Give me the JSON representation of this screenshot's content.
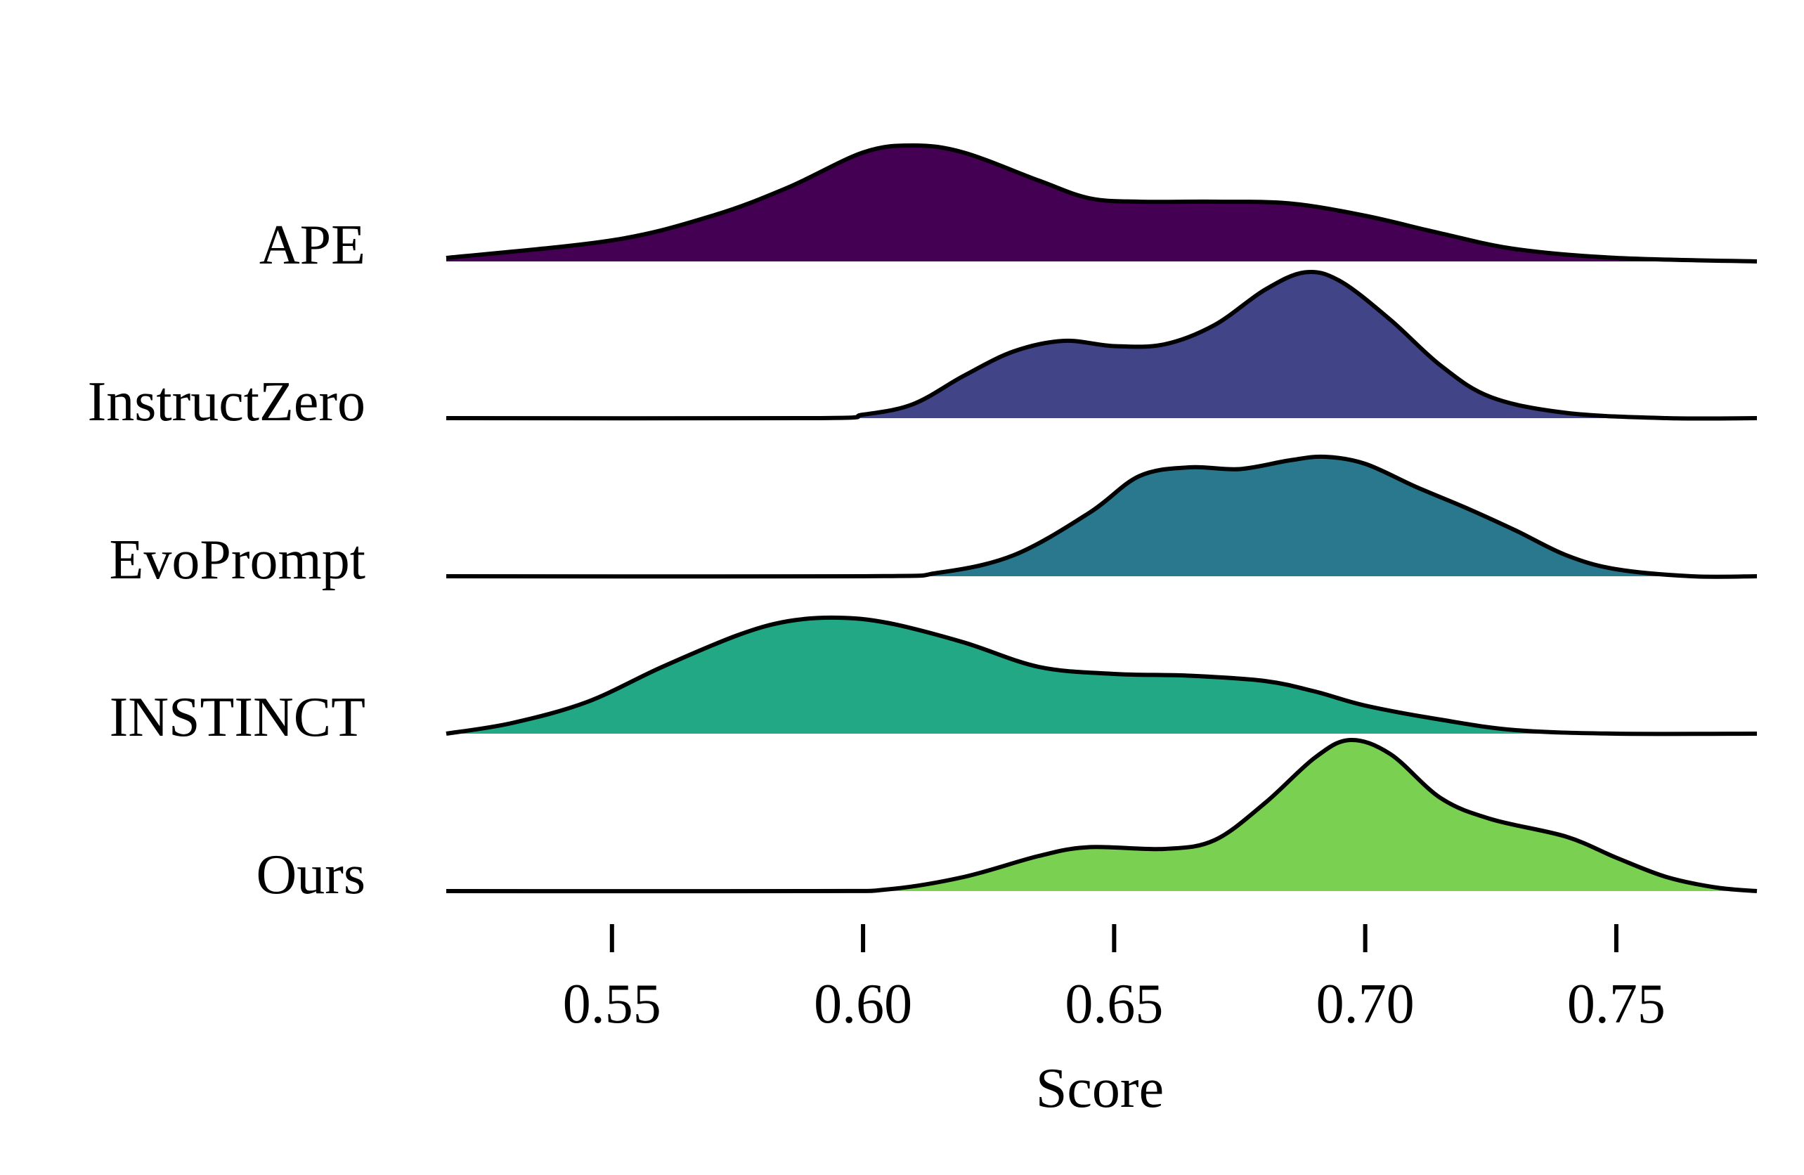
{
  "chart_data": {
    "type": "ridgeline",
    "title": "",
    "xlabel": "Score",
    "ylabel": "",
    "xlim": [
      0.517,
      0.778
    ],
    "xticks": [
      0.55,
      0.6,
      0.65,
      0.7,
      0.75
    ],
    "xtick_labels": [
      "0.55",
      "0.60",
      "0.65",
      "0.70",
      "0.75"
    ],
    "grid": false,
    "legend": "none",
    "series": [
      {
        "name": "APE",
        "color": "#440154",
        "points": [
          [
            0.517,
            0.02
          ],
          [
            0.55,
            0.12
          ],
          [
            0.57,
            0.26
          ],
          [
            0.585,
            0.42
          ],
          [
            0.6,
            0.62
          ],
          [
            0.61,
            0.66
          ],
          [
            0.62,
            0.62
          ],
          [
            0.635,
            0.46
          ],
          [
            0.645,
            0.36
          ],
          [
            0.655,
            0.34
          ],
          [
            0.67,
            0.34
          ],
          [
            0.685,
            0.33
          ],
          [
            0.7,
            0.26
          ],
          [
            0.715,
            0.16
          ],
          [
            0.73,
            0.07
          ],
          [
            0.75,
            0.02
          ],
          [
            0.778,
            0.0
          ]
        ]
      },
      {
        "name": "InstructZero",
        "color": "#414487",
        "points": [
          [
            0.517,
            0.0
          ],
          [
            0.59,
            0.0
          ],
          [
            0.6,
            0.02
          ],
          [
            0.61,
            0.08
          ],
          [
            0.62,
            0.24
          ],
          [
            0.63,
            0.38
          ],
          [
            0.64,
            0.44
          ],
          [
            0.65,
            0.41
          ],
          [
            0.66,
            0.42
          ],
          [
            0.67,
            0.53
          ],
          [
            0.68,
            0.73
          ],
          [
            0.688,
            0.83
          ],
          [
            0.695,
            0.78
          ],
          [
            0.705,
            0.56
          ],
          [
            0.715,
            0.3
          ],
          [
            0.725,
            0.12
          ],
          [
            0.74,
            0.03
          ],
          [
            0.76,
            0.0
          ],
          [
            0.778,
            0.0
          ]
        ]
      },
      {
        "name": "EvoPrompt",
        "color": "#2a788e",
        "points": [
          [
            0.517,
            0.0
          ],
          [
            0.6,
            0.0
          ],
          [
            0.615,
            0.02
          ],
          [
            0.63,
            0.12
          ],
          [
            0.645,
            0.36
          ],
          [
            0.655,
            0.57
          ],
          [
            0.665,
            0.62
          ],
          [
            0.675,
            0.61
          ],
          [
            0.685,
            0.66
          ],
          [
            0.692,
            0.68
          ],
          [
            0.7,
            0.64
          ],
          [
            0.71,
            0.51
          ],
          [
            0.72,
            0.39
          ],
          [
            0.73,
            0.26
          ],
          [
            0.74,
            0.12
          ],
          [
            0.75,
            0.04
          ],
          [
            0.765,
            0.0
          ],
          [
            0.778,
            0.0
          ]
        ]
      },
      {
        "name": "INSTINCT",
        "color": "#22a884",
        "points": [
          [
            0.517,
            0.0
          ],
          [
            0.53,
            0.06
          ],
          [
            0.545,
            0.18
          ],
          [
            0.56,
            0.38
          ],
          [
            0.575,
            0.56
          ],
          [
            0.585,
            0.64
          ],
          [
            0.595,
            0.66
          ],
          [
            0.605,
            0.63
          ],
          [
            0.62,
            0.52
          ],
          [
            0.635,
            0.38
          ],
          [
            0.65,
            0.34
          ],
          [
            0.665,
            0.33
          ],
          [
            0.68,
            0.3
          ],
          [
            0.69,
            0.24
          ],
          [
            0.7,
            0.16
          ],
          [
            0.715,
            0.08
          ],
          [
            0.73,
            0.02
          ],
          [
            0.75,
            0.0
          ],
          [
            0.778,
            0.0
          ]
        ]
      },
      {
        "name": "Ours",
        "color": "#7ad151",
        "points": [
          [
            0.517,
            0.0
          ],
          [
            0.59,
            0.0
          ],
          [
            0.605,
            0.01
          ],
          [
            0.62,
            0.08
          ],
          [
            0.635,
            0.2
          ],
          [
            0.645,
            0.25
          ],
          [
            0.66,
            0.24
          ],
          [
            0.67,
            0.29
          ],
          [
            0.68,
            0.5
          ],
          [
            0.69,
            0.76
          ],
          [
            0.697,
            0.86
          ],
          [
            0.705,
            0.78
          ],
          [
            0.715,
            0.53
          ],
          [
            0.725,
            0.41
          ],
          [
            0.74,
            0.31
          ],
          [
            0.75,
            0.19
          ],
          [
            0.76,
            0.08
          ],
          [
            0.77,
            0.02
          ],
          [
            0.778,
            0.0
          ]
        ]
      }
    ]
  }
}
